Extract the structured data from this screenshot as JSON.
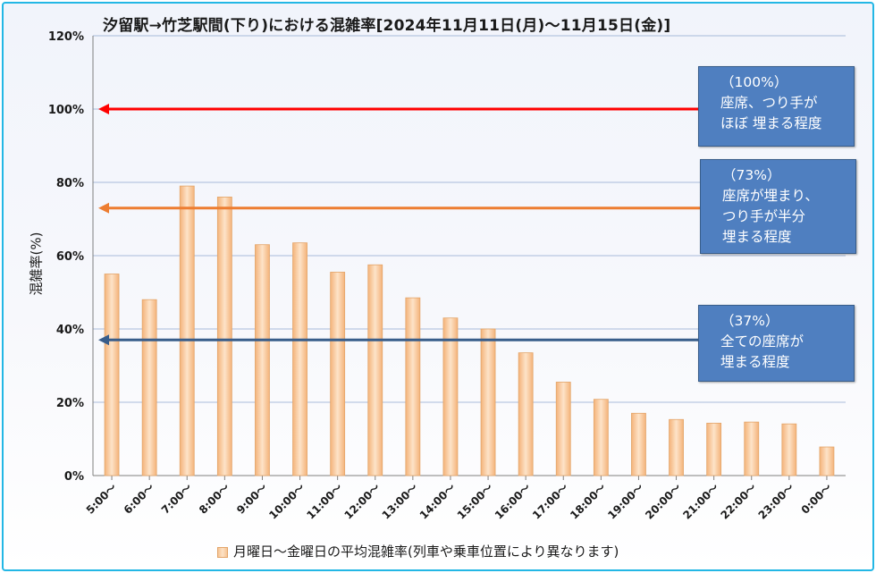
{
  "title": "汐留駅→竹芝駅間(下り)における混雑率[2024年11月11日(月)～11月15日(金)]",
  "chart_data": {
    "type": "bar",
    "title": "汐留駅→竹芝駅間(下り)における混雑率[2024年11月11日(月)～11月15日(金)]",
    "xlabel": "",
    "ylabel": "混雑率(%)",
    "ylim": [
      0,
      120
    ],
    "yticks": [
      "0%",
      "20%",
      "40%",
      "60%",
      "80%",
      "100%",
      "120%"
    ],
    "grid": true,
    "legend_position": "bottom",
    "categories": [
      "5:00～",
      "6:00～",
      "7:00～",
      "8:00～",
      "9:00～",
      "10:00～",
      "11:00～",
      "12:00～",
      "13:00～",
      "14:00～",
      "15:00～",
      "16:00～",
      "17:00～",
      "18:00～",
      "19:00～",
      "20:00～",
      "21:00～",
      "22:00～",
      "23:00～",
      "0:00～"
    ],
    "series": [
      {
        "name": "月曜日～金曜日の平均混雑率(列車や乗車位置により異なります)",
        "values": [
          55,
          48,
          79,
          76,
          63,
          63.5,
          55.5,
          57.5,
          48.5,
          43,
          40,
          33.5,
          25.5,
          20.8,
          17,
          15.3,
          14.3,
          14.6,
          14.1,
          7.8
        ]
      }
    ],
    "reference_lines": [
      {
        "value": 100,
        "color": "#ff0000",
        "label": [
          "（100%）",
          "座席、つり手が",
          "ほぼ 埋まる程度"
        ]
      },
      {
        "value": 73,
        "color": "#ed7d31",
        "label": [
          "（73%）",
          "座席が埋まり、",
          "つり手が半分",
          "埋まる程度"
        ]
      },
      {
        "value": 37,
        "color": "#385d8a",
        "label": [
          "（37%）",
          "全ての座席が",
          "埋まる程度"
        ]
      }
    ]
  },
  "colors": {
    "frame_border": "#23b7e5",
    "bar_fill": "#f9cfa3",
    "bar_edge": "#e3a56a",
    "note_fill": "#4f7fc0"
  }
}
